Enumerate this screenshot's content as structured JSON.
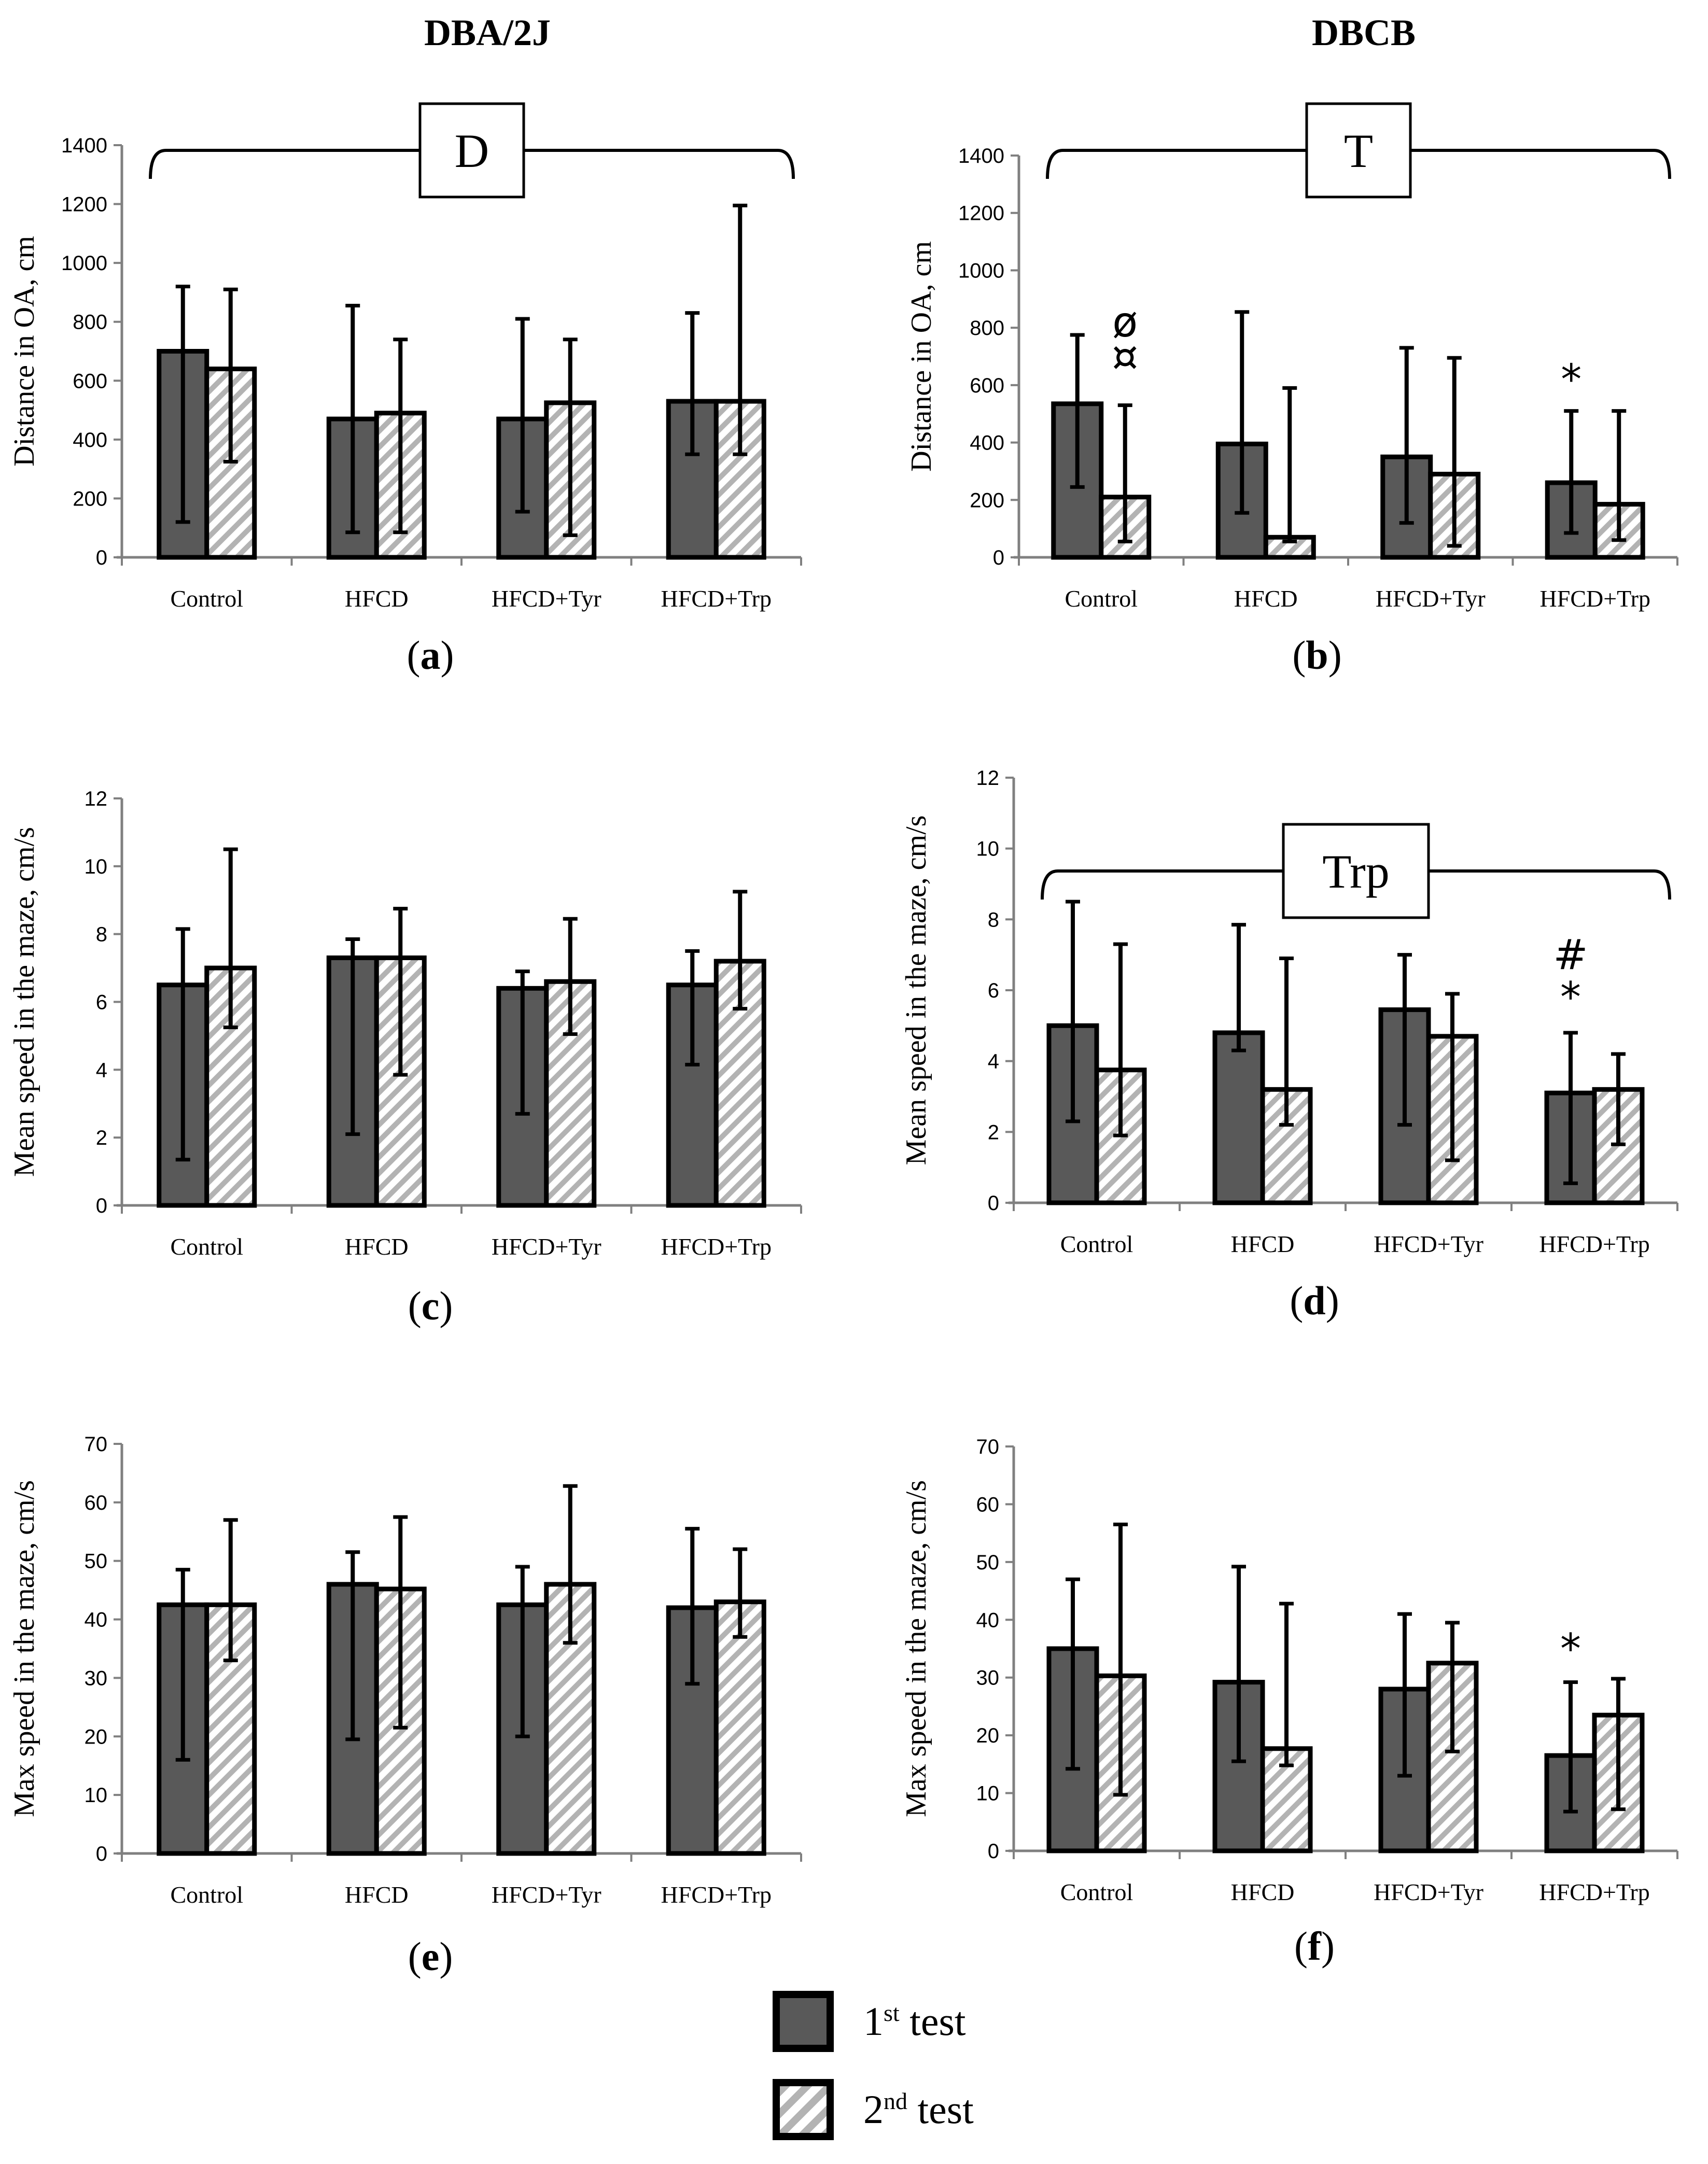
{
  "colors": {
    "first": "#595959",
    "second_bg": "#ffffff",
    "second_stripe": "#b3b3b3",
    "axis": "#808080",
    "bar_border": "#000000"
  },
  "column_titles": [
    "DBA/2J",
    "DBCB"
  ],
  "legend": {
    "first": {
      "label_sup": "st",
      "label_rest": " test",
      "label_num": "1"
    },
    "second": {
      "label_sup": "nd",
      "label_rest": " test",
      "label_num": "2"
    }
  },
  "chart_data": [
    {
      "panel": "a",
      "panel_label": "(a)",
      "type": "bar",
      "strain": "DBA/2J",
      "ylabel": "Distance in OA, cm",
      "ylim": [
        0,
        1400
      ],
      "yticks": [
        "0",
        "200",
        "400",
        "600",
        "800",
        "1000",
        "1200",
        "1400"
      ],
      "categories": [
        "Control",
        "HFCD",
        "HFCD+Tyr",
        "HFCD+Trp"
      ],
      "series": [
        {
          "name": "1st test",
          "values": [
            700,
            470,
            470,
            530
          ],
          "err_high": [
            920,
            855,
            810,
            830
          ],
          "err_low": [
            120,
            85,
            155,
            350
          ]
        },
        {
          "name": "2nd test",
          "values": [
            640,
            490,
            525,
            530
          ],
          "err_high": [
            910,
            740,
            740,
            1195
          ],
          "err_low": [
            325,
            85,
            75,
            350
          ]
        }
      ],
      "bracket_label": "D",
      "annotations": []
    },
    {
      "panel": "b",
      "panel_label": "(b)",
      "type": "bar",
      "strain": "DBCB",
      "ylabel": "Distance in OA, cm",
      "ylim": [
        0,
        1400
      ],
      "yticks": [
        "0",
        "200",
        "400",
        "600",
        "800",
        "1000",
        "1200",
        "1400"
      ],
      "categories": [
        "Control",
        "HFCD",
        "HFCD+Tyr",
        "HFCD+Trp"
      ],
      "series": [
        {
          "name": "1st test",
          "values": [
            535,
            395,
            350,
            260
          ],
          "err_high": [
            775,
            855,
            730,
            510
          ],
          "err_low": [
            245,
            155,
            120,
            85
          ]
        },
        {
          "name": "2nd test",
          "values": [
            210,
            70,
            290,
            185
          ],
          "err_high": [
            530,
            590,
            695,
            510
          ],
          "err_low": [
            55,
            55,
            40,
            60
          ]
        }
      ],
      "bracket_label": "T",
      "annotations": [
        {
          "category": 0,
          "series": 1,
          "y": 770,
          "text": "ø"
        },
        {
          "category": 0,
          "series": 1,
          "y": 650,
          "text": "¤"
        },
        {
          "category": 3,
          "series": 0,
          "y": 570,
          "text": "*"
        }
      ]
    },
    {
      "panel": "c",
      "panel_label": "(c)",
      "type": "bar",
      "strain": "DBA/2J",
      "ylabel": "Mean speed in the maze, cm/s",
      "ylim": [
        0,
        12
      ],
      "yticks": [
        "0",
        "2",
        "4",
        "6",
        "8",
        "10",
        "12"
      ],
      "categories": [
        "Control",
        "HFCD",
        "HFCD+Tyr",
        "HFCD+Trp"
      ],
      "series": [
        {
          "name": "1st test",
          "values": [
            6.5,
            7.3,
            6.4,
            6.5
          ],
          "err_high": [
            8.15,
            7.85,
            6.9,
            7.5
          ],
          "err_low": [
            1.35,
            2.1,
            2.7,
            4.15
          ]
        },
        {
          "name": "2nd test",
          "values": [
            7.0,
            7.3,
            6.6,
            7.2
          ],
          "err_high": [
            10.5,
            8.75,
            8.45,
            9.25
          ],
          "err_low": [
            5.25,
            3.85,
            5.05,
            5.8
          ]
        }
      ],
      "bracket_label": "",
      "annotations": []
    },
    {
      "panel": "d",
      "panel_label": "(d)",
      "type": "bar",
      "strain": "DBCB",
      "ylabel": "Mean speed in the maze, cm/s",
      "ylim": [
        0,
        12
      ],
      "yticks": [
        "0",
        "2",
        "4",
        "6",
        "8",
        "10",
        "12"
      ],
      "categories": [
        "Control",
        "HFCD",
        "HFCD+Tyr",
        "HFCD+Trp"
      ],
      "series": [
        {
          "name": "1st test",
          "values": [
            5.0,
            4.8,
            5.45,
            3.1
          ],
          "err_high": [
            8.5,
            7.85,
            7.0,
            4.8
          ],
          "err_low": [
            2.3,
            4.3,
            2.2,
            0.55
          ]
        },
        {
          "name": "2nd test",
          "values": [
            3.75,
            3.2,
            4.7,
            3.2
          ],
          "err_high": [
            7.3,
            6.9,
            5.9,
            4.2
          ],
          "err_low": [
            1.9,
            2.2,
            1.2,
            1.65
          ]
        }
      ],
      "bracket_label": "Trp",
      "annotations": [
        {
          "category": 3,
          "series": 0,
          "y": 6.6,
          "text": "#"
        },
        {
          "category": 3,
          "series": 0,
          "y": 5.4,
          "text": "*"
        }
      ]
    },
    {
      "panel": "e",
      "panel_label": "(e)",
      "type": "bar",
      "strain": "DBA/2J",
      "ylabel": "Max speed in the maze, cm/s",
      "ylim": [
        0,
        70
      ],
      "yticks": [
        "0",
        "10",
        "20",
        "30",
        "40",
        "50",
        "60",
        "70"
      ],
      "categories": [
        "Control",
        "HFCD",
        "HFCD+Tyr",
        "HFCD+Trp"
      ],
      "series": [
        {
          "name": "1st test",
          "values": [
            42.5,
            46,
            42.5,
            42
          ],
          "err_high": [
            48.5,
            51.5,
            49,
            55.5
          ],
          "err_low": [
            16,
            19.5,
            20,
            29
          ]
        },
        {
          "name": "2nd test",
          "values": [
            42.5,
            45.2,
            46,
            43
          ],
          "err_high": [
            57,
            57.5,
            62.8,
            52
          ],
          "err_low": [
            33,
            21.5,
            36,
            37
          ]
        }
      ],
      "bracket_label": "",
      "annotations": []
    },
    {
      "panel": "f",
      "panel_label": "(f)",
      "type": "bar",
      "strain": "DBCB",
      "ylabel": "Max speed in the maze, cm/s",
      "ylim": [
        0,
        70
      ],
      "yticks": [
        "0",
        "10",
        "20",
        "30",
        "40",
        "50",
        "60",
        "70"
      ],
      "categories": [
        "Control",
        "HFCD",
        "HFCD+Tyr",
        "HFCD+Trp"
      ],
      "series": [
        {
          "name": "1st test",
          "values": [
            35,
            29.2,
            28,
            16.5
          ],
          "err_high": [
            47,
            49.2,
            41,
            29.2
          ],
          "err_low": [
            14.2,
            15.5,
            13,
            6.8
          ]
        },
        {
          "name": "2nd test",
          "values": [
            30.3,
            17.7,
            32.5,
            23.5
          ],
          "err_high": [
            56.5,
            42.8,
            39.5,
            29.8
          ],
          "err_low": [
            9.7,
            14.8,
            17.2,
            7.2
          ]
        }
      ],
      "bracket_label": "",
      "annotations": [
        {
          "category": 3,
          "series": 0,
          "y": 32.5,
          "text": "*"
        }
      ]
    }
  ]
}
